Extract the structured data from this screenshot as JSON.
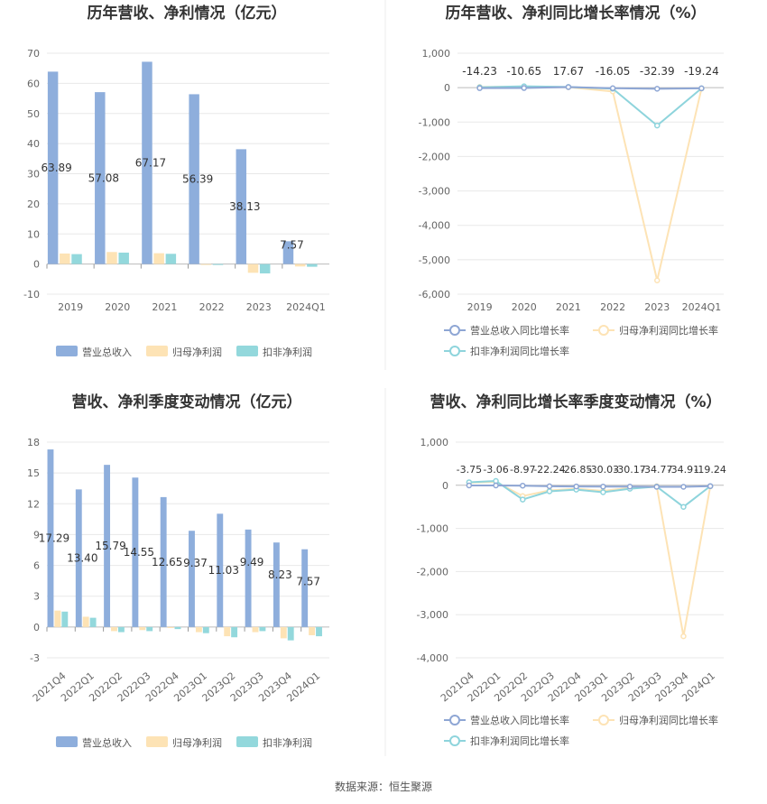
{
  "colors": {
    "revenue": "#8eaedc",
    "net_profit": "#fde3b5",
    "deducted_profit": "#93d8dc",
    "rev_line": "#8ea6d4",
    "np_line": "#fde3b5",
    "dp_line": "#8ed4dc"
  },
  "source": "数据来源：恒生聚源",
  "chart_data": [
    {
      "id": "annual_values",
      "type": "bar",
      "title": "历年营收、净利情况（亿元）",
      "categories": [
        "2019",
        "2020",
        "2021",
        "2022",
        "2023",
        "2024Q1"
      ],
      "yticks": [
        "70",
        "60",
        "50",
        "40",
        "30",
        "20",
        "10",
        "0",
        "-10"
      ],
      "ylim": [
        -10,
        70
      ],
      "series": [
        {
          "name": "营业总收入",
          "values": [
            63.89,
            57.08,
            67.17,
            56.39,
            38.13,
            7.57
          ]
        },
        {
          "name": "归母净利润",
          "values": [
            3.5,
            4.0,
            3.6,
            -0.2,
            -2.9,
            -0.8
          ]
        },
        {
          "name": "扣非净利润",
          "values": [
            3.3,
            3.8,
            3.4,
            -0.3,
            -3.1,
            -0.9
          ]
        }
      ],
      "labels": [
        "63.89",
        "57.08",
        "67.17",
        "56.39",
        "38.13",
        "7.57"
      ]
    },
    {
      "id": "annual_growth",
      "type": "line",
      "title": "历年营收、净利同比增长率情况（%）",
      "categories": [
        "2019",
        "2020",
        "2021",
        "2022",
        "2023",
        "2024Q1"
      ],
      "yticks": [
        "1,000",
        "0",
        "-1,000",
        "-2,000",
        "-3,000",
        "-4,000",
        "-5,000",
        "-6,000"
      ],
      "ylim": [
        -6000,
        1000
      ],
      "series": [
        {
          "name": "营业总收入同比增长率",
          "values": [
            -14.23,
            -10.65,
            17.67,
            -16.05,
            -32.39,
            -19.24
          ]
        },
        {
          "name": "归母净利润同比增长率",
          "values": [
            20,
            30,
            15,
            -110,
            -5600,
            -25
          ]
        },
        {
          "name": "扣非净利润同比增长率",
          "values": [
            10,
            40,
            20,
            -30,
            -1100,
            -20
          ]
        }
      ],
      "labels": [
        "-14.23",
        "-10.65",
        "17.67",
        "-16.05",
        "-32.39",
        "-19.24"
      ]
    },
    {
      "id": "quarterly_values",
      "type": "bar",
      "title": "营收、净利季度变动情况（亿元）",
      "categories": [
        "2021Q4",
        "2022Q1",
        "2022Q2",
        "2022Q3",
        "2022Q4",
        "2023Q1",
        "2023Q2",
        "2023Q3",
        "2023Q4",
        "2024Q1"
      ],
      "yticks": [
        "18",
        "15",
        "12",
        "9",
        "6",
        "3",
        "0",
        "-3"
      ],
      "ylim": [
        -3,
        18
      ],
      "series": [
        {
          "name": "营业总收入",
          "values": [
            17.29,
            13.4,
            15.79,
            14.55,
            12.65,
            9.37,
            11.03,
            9.49,
            8.23,
            7.57
          ]
        },
        {
          "name": "归母净利润",
          "values": [
            1.6,
            1.0,
            -0.4,
            -0.3,
            -0.1,
            -0.5,
            -0.9,
            -0.5,
            -1.1,
            -0.8
          ]
        },
        {
          "name": "扣非净利润",
          "values": [
            1.5,
            0.9,
            -0.5,
            -0.4,
            -0.2,
            -0.6,
            -1.0,
            -0.4,
            -1.3,
            -0.9
          ]
        }
      ],
      "labels": [
        "17.29",
        "13.40",
        "15.79",
        "14.55",
        "12.65",
        "9.37",
        "11.03",
        "9.49",
        "8.23",
        "7.57"
      ]
    },
    {
      "id": "quarterly_growth",
      "type": "line",
      "title": "营收、净利同比增长率季度变动情况（%）",
      "categories": [
        "2021Q4",
        "2022Q1",
        "2022Q2",
        "2022Q3",
        "2022Q4",
        "2023Q1",
        "2023Q2",
        "2023Q3",
        "2023Q4",
        "2024Q1"
      ],
      "yticks": [
        "1,000",
        "0",
        "-1,000",
        "-2,000",
        "-3,000",
        "-4,000"
      ],
      "ylim": [
        -4000,
        1000
      ],
      "series": [
        {
          "name": "营业总收入同比增长率",
          "values": [
            -3.75,
            -3.06,
            -8.97,
            -22.24,
            -26.85,
            -30.03,
            -30.17,
            -34.77,
            -34.91,
            -19.24
          ]
        },
        {
          "name": "归母净利润同比增长率",
          "values": [
            60,
            80,
            -250,
            -120,
            -80,
            -130,
            -60,
            -20,
            -3500,
            -25
          ]
        },
        {
          "name": "扣非净利润同比增长率",
          "values": [
            70,
            100,
            -330,
            -140,
            -100,
            -160,
            -80,
            -30,
            -500,
            -20
          ]
        }
      ],
      "labels": [
        "-3.75",
        "-3.06",
        "-8.97",
        "-22.24",
        "-26.85",
        "-30.03",
        "-30.17",
        "-34.77",
        "-34.91",
        "-19.24"
      ]
    }
  ]
}
